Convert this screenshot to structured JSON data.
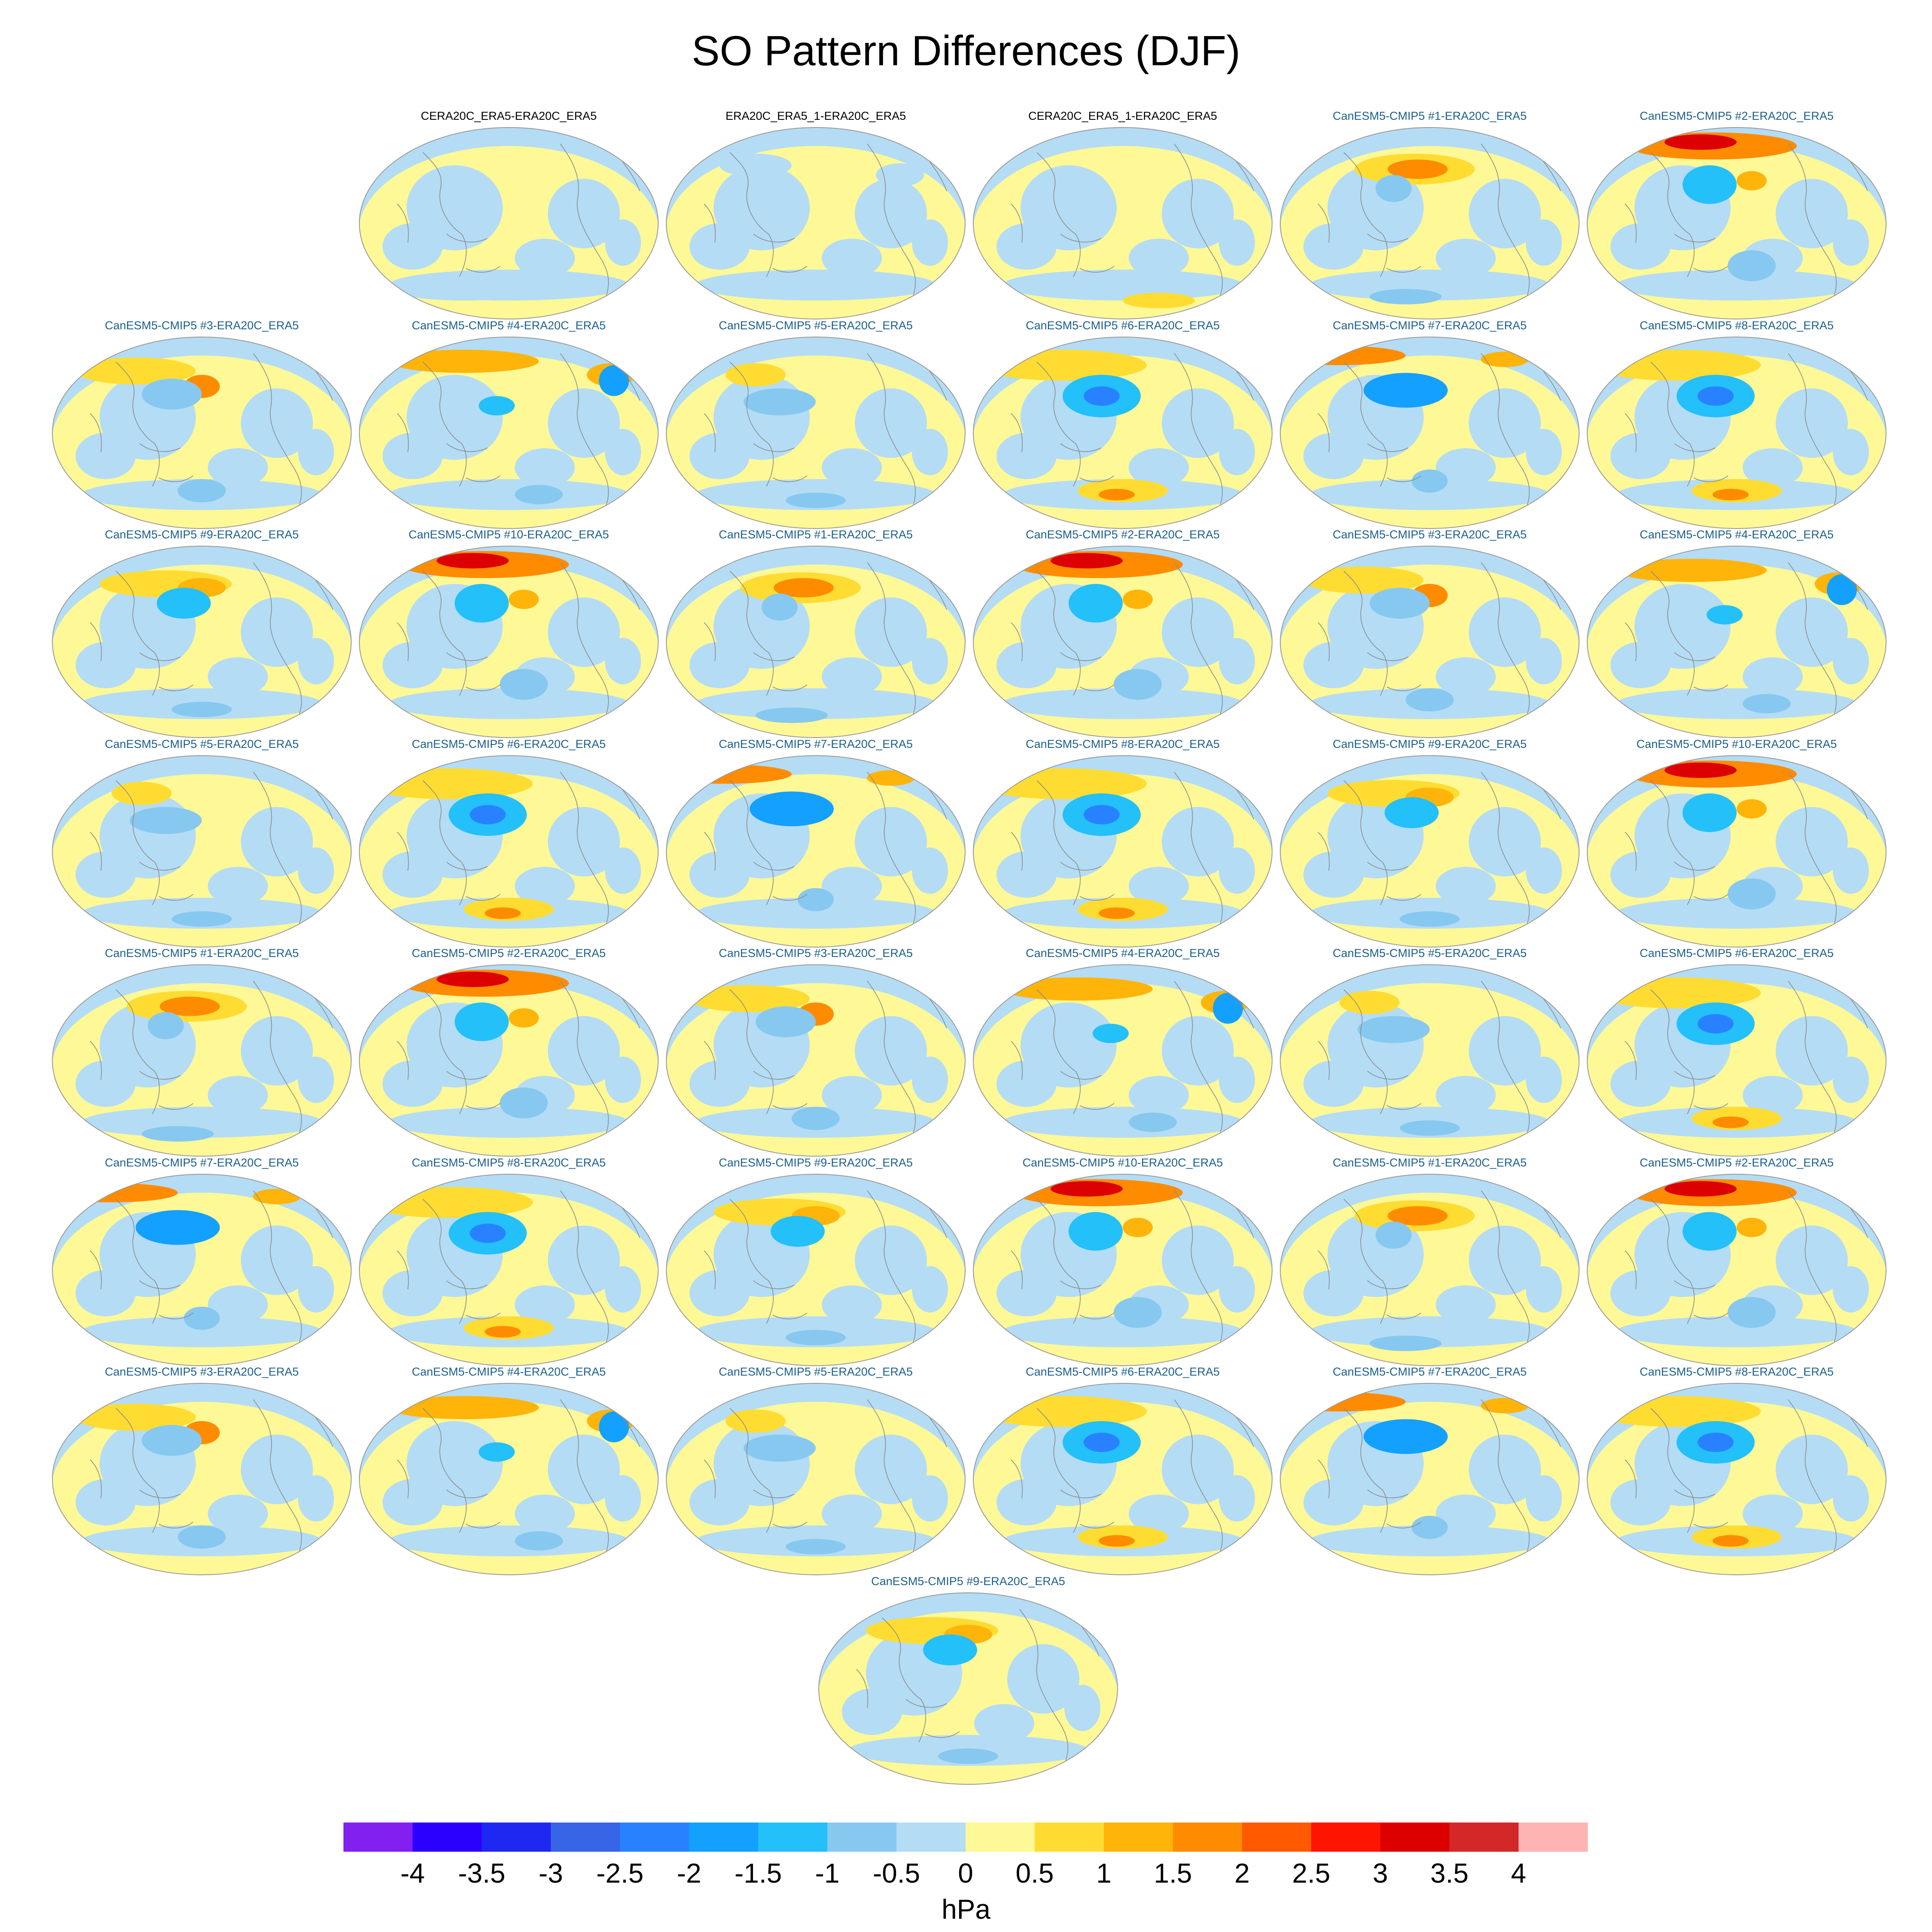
{
  "title": "SO Pattern Differences (DJF)",
  "panels": [
    {
      "label": "CERA20C_ERA5-ERA20C_ERA5",
      "kind": "ref",
      "variant": 0
    },
    {
      "label": "ERA20C_ERA5_1-ERA20C_ERA5",
      "kind": "ref",
      "variant": 1
    },
    {
      "label": "CERA20C_ERA5_1-ERA20C_ERA5",
      "kind": "ref",
      "variant": 2
    },
    {
      "label": "CanESM5-CMIP5 #1-ERA20C_ERA5",
      "kind": "model",
      "variant": 3
    },
    {
      "label": "CanESM5-CMIP5 #2-ERA20C_ERA5",
      "kind": "model",
      "variant": 4
    },
    {
      "label": "CanESM5-CMIP5 #3-ERA20C_ERA5",
      "kind": "model",
      "variant": 5
    },
    {
      "label": "CanESM5-CMIP5 #4-ERA20C_ERA5",
      "kind": "model",
      "variant": 6
    },
    {
      "label": "CanESM5-CMIP5 #5-ERA20C_ERA5",
      "kind": "model",
      "variant": 7
    },
    {
      "label": "CanESM5-CMIP5 #6-ERA20C_ERA5",
      "kind": "model",
      "variant": 8
    },
    {
      "label": "CanESM5-CMIP5 #7-ERA20C_ERA5",
      "kind": "model",
      "variant": 9
    },
    {
      "label": "CanESM5-CMIP5 #8-ERA20C_ERA5",
      "kind": "model",
      "variant": 8
    },
    {
      "label": "CanESM5-CMIP5 #9-ERA20C_ERA5",
      "kind": "model",
      "variant": 10
    },
    {
      "label": "CanESM5-CMIP5 #10-ERA20C_ERA5",
      "kind": "model",
      "variant": 4
    },
    {
      "label": "CanESM5-CMIP5 #1-ERA20C_ERA5",
      "kind": "model",
      "variant": 3
    },
    {
      "label": "CanESM5-CMIP5 #2-ERA20C_ERA5",
      "kind": "model",
      "variant": 4
    },
    {
      "label": "CanESM5-CMIP5 #3-ERA20C_ERA5",
      "kind": "model",
      "variant": 5
    },
    {
      "label": "CanESM5-CMIP5 #4-ERA20C_ERA5",
      "kind": "model",
      "variant": 6
    },
    {
      "label": "CanESM5-CMIP5 #5-ERA20C_ERA5",
      "kind": "model",
      "variant": 7
    },
    {
      "label": "CanESM5-CMIP5 #6-ERA20C_ERA5",
      "kind": "model",
      "variant": 8
    },
    {
      "label": "CanESM5-CMIP5 #7-ERA20C_ERA5",
      "kind": "model",
      "variant": 9
    },
    {
      "label": "CanESM5-CMIP5 #8-ERA20C_ERA5",
      "kind": "model",
      "variant": 8
    },
    {
      "label": "CanESM5-CMIP5 #9-ERA20C_ERA5",
      "kind": "model",
      "variant": 10
    },
    {
      "label": "CanESM5-CMIP5 #10-ERA20C_ERA5",
      "kind": "model",
      "variant": 4
    },
    {
      "label": "CanESM5-CMIP5 #1-ERA20C_ERA5",
      "kind": "model",
      "variant": 3
    },
    {
      "label": "CanESM5-CMIP5 #2-ERA20C_ERA5",
      "kind": "model",
      "variant": 4
    },
    {
      "label": "CanESM5-CMIP5 #3-ERA20C_ERA5",
      "kind": "model",
      "variant": 5
    },
    {
      "label": "CanESM5-CMIP5 #4-ERA20C_ERA5",
      "kind": "model",
      "variant": 6
    },
    {
      "label": "CanESM5-CMIP5 #5-ERA20C_ERA5",
      "kind": "model",
      "variant": 7
    },
    {
      "label": "CanESM5-CMIP5 #6-ERA20C_ERA5",
      "kind": "model",
      "variant": 8
    },
    {
      "label": "CanESM5-CMIP5 #7-ERA20C_ERA5",
      "kind": "model",
      "variant": 9
    },
    {
      "label": "CanESM5-CMIP5 #8-ERA20C_ERA5",
      "kind": "model",
      "variant": 8
    },
    {
      "label": "CanESM5-CMIP5 #9-ERA20C_ERA5",
      "kind": "model",
      "variant": 10
    },
    {
      "label": "CanESM5-CMIP5 #10-ERA20C_ERA5",
      "kind": "model",
      "variant": 4
    },
    {
      "label": "CanESM5-CMIP5 #1-ERA20C_ERA5",
      "kind": "model",
      "variant": 3
    },
    {
      "label": "CanESM5-CMIP5 #2-ERA20C_ERA5",
      "kind": "model",
      "variant": 4
    },
    {
      "label": "CanESM5-CMIP5 #3-ERA20C_ERA5",
      "kind": "model",
      "variant": 5
    },
    {
      "label": "CanESM5-CMIP5 #4-ERA20C_ERA5",
      "kind": "model",
      "variant": 6
    },
    {
      "label": "CanESM5-CMIP5 #5-ERA20C_ERA5",
      "kind": "model",
      "variant": 7
    },
    {
      "label": "CanESM5-CMIP5 #6-ERA20C_ERA5",
      "kind": "model",
      "variant": 8
    },
    {
      "label": "CanESM5-CMIP5 #7-ERA20C_ERA5",
      "kind": "model",
      "variant": 9
    },
    {
      "label": "CanESM5-CMIP5 #8-ERA20C_ERA5",
      "kind": "model",
      "variant": 8
    },
    {
      "label": "CanESM5-CMIP5 #9-ERA20C_ERA5",
      "kind": "model",
      "variant": 10
    }
  ],
  "colorbar": {
    "unit": "hPa",
    "tick_labels": [
      "-4",
      "-3.5",
      "-3",
      "-2.5",
      "-2",
      "-1.5",
      "-1",
      "-0.5",
      "0",
      "0.5",
      "1",
      "1.5",
      "2",
      "2.5",
      "3",
      "3.5",
      "4"
    ],
    "colors": [
      "#8220f0",
      "#2b00ff",
      "#1f28f0",
      "#3864e6",
      "#2882ff",
      "#14a0ff",
      "#23c0fa",
      "#87c8f0",
      "#b4dcf5",
      "#fff896",
      "#ffdc32",
      "#ffb40a",
      "#ff8c00",
      "#ff5a00",
      "#ff1400",
      "#dc0000",
      "#d22828",
      "#ffb4b4"
    ]
  }
}
